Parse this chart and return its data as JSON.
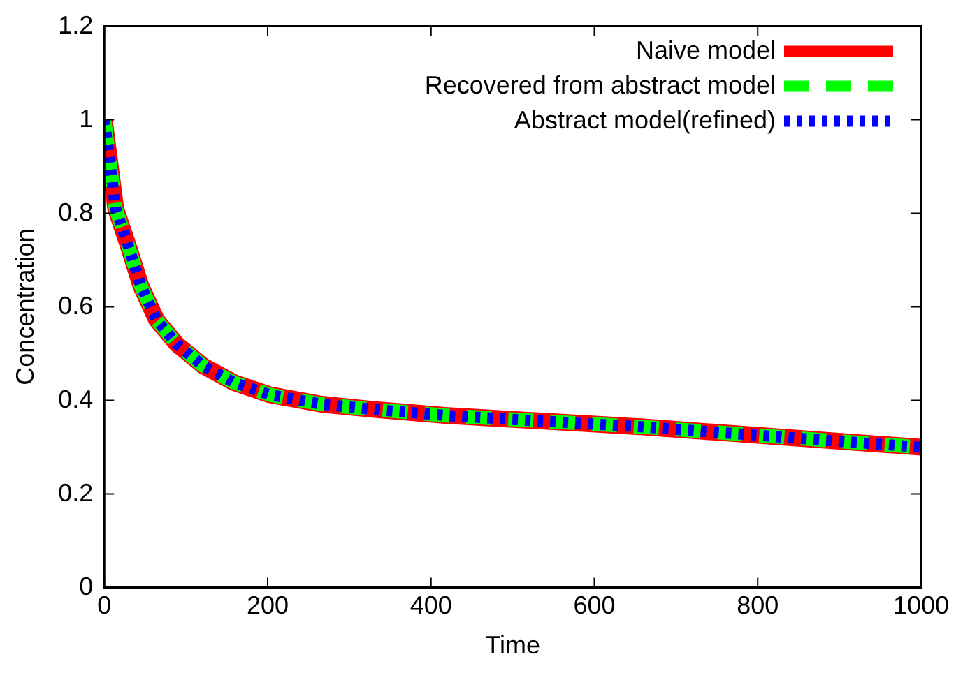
{
  "chart_data": {
    "type": "line",
    "xlabel": "Time",
    "ylabel": "Concentration",
    "xlim": [
      0,
      1000
    ],
    "xticks": [
      0,
      200,
      400,
      600,
      800,
      1000
    ],
    "ylim": [
      0,
      1.2
    ],
    "yticks": [
      0,
      0.2,
      0.4,
      0.6,
      0.8,
      1,
      1.2
    ],
    "grid": false,
    "legend": "top right",
    "marker": "none",
    "series": [
      {
        "name": "Naive model",
        "color": "#ff0000",
        "line_style": "solid",
        "x": [
          0,
          14,
          30,
          45,
          64,
          89,
          121,
          159,
          203,
          266,
          329,
          417,
          663,
          1000
        ],
        "values": [
          1,
          0.81,
          0.727,
          0.644,
          0.572,
          0.52,
          0.474,
          0.438,
          0.412,
          0.392,
          0.381,
          0.368,
          0.343,
          0.3
        ]
      },
      {
        "name": "Recovered from abstract model",
        "color": "#00ff00",
        "line_style": "dashed",
        "x": [
          0,
          14,
          30,
          45,
          64,
          89,
          121,
          159,
          203,
          266,
          329,
          417,
          663,
          1000
        ],
        "values": [
          1,
          0.81,
          0.727,
          0.644,
          0.572,
          0.52,
          0.474,
          0.438,
          0.412,
          0.392,
          0.381,
          0.368,
          0.343,
          0.3
        ]
      },
      {
        "name": "Abstract model(refined)",
        "color": "#0000ff",
        "line_style": "dotted",
        "x": [
          0,
          14,
          30,
          45,
          64,
          89,
          121,
          159,
          203,
          266,
          329,
          417,
          663,
          1000
        ],
        "values": [
          1,
          0.81,
          0.727,
          0.644,
          0.572,
          0.52,
          0.474,
          0.438,
          0.412,
          0.392,
          0.381,
          0.368,
          0.343,
          0.3
        ]
      }
    ]
  }
}
